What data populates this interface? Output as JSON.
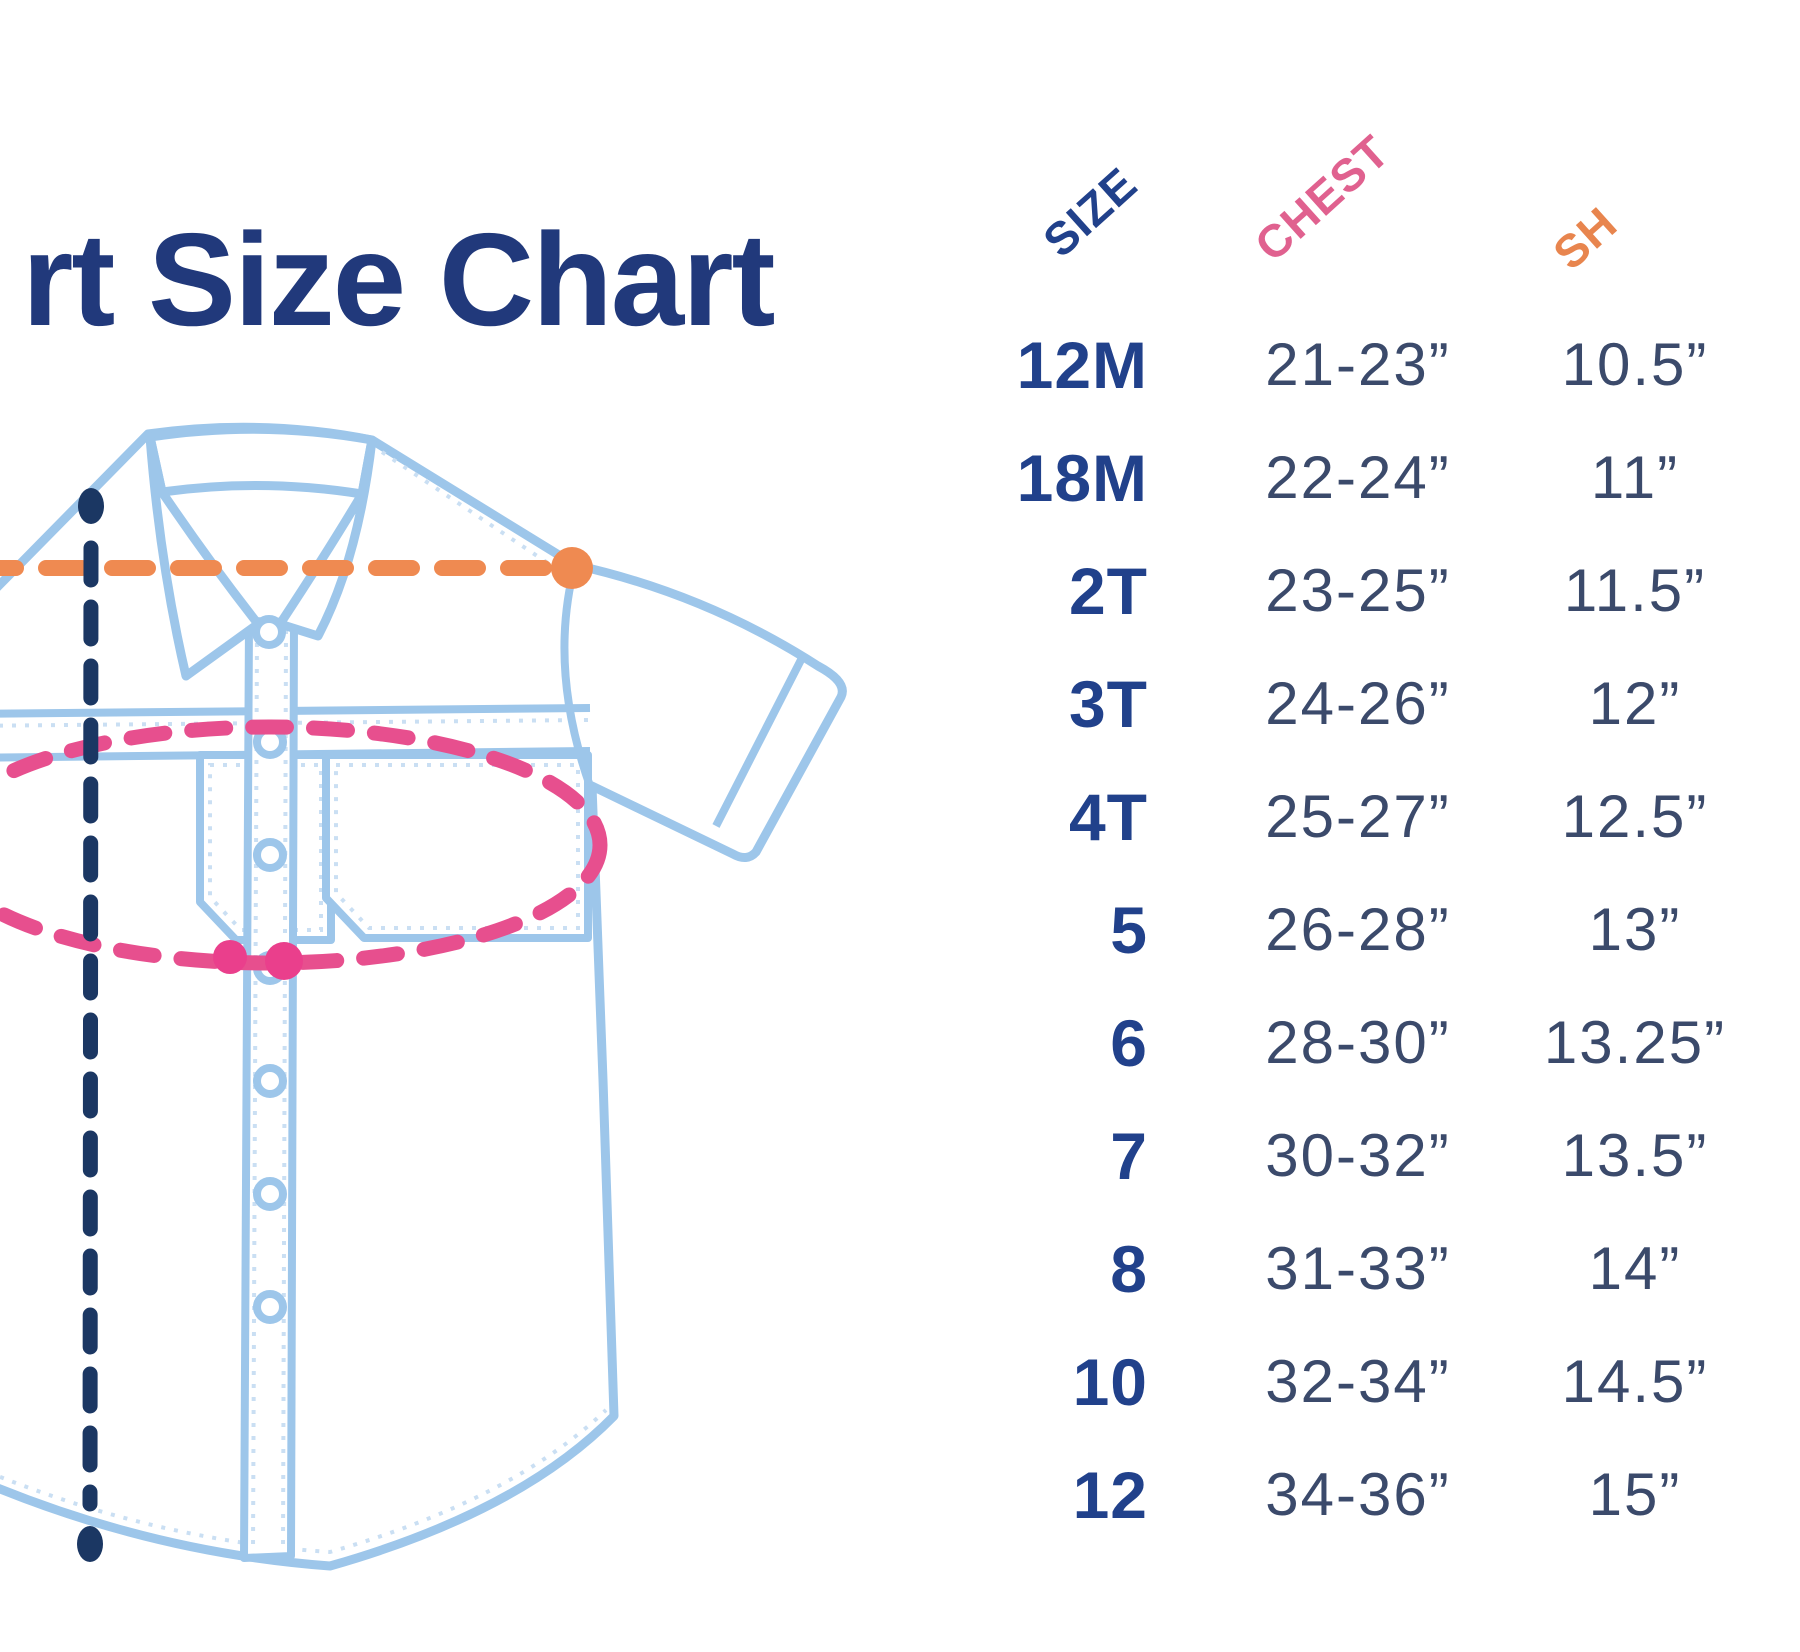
{
  "title": "rt Size Chart",
  "table": {
    "headers": [
      {
        "label": "SIZE",
        "color": "#21418b"
      },
      {
        "label": "CHEST",
        "color": "#e0618f"
      },
      {
        "label": "SH",
        "color": "#e8854e"
      }
    ],
    "rows": [
      {
        "size": "12M",
        "chest": "21-23”",
        "shoulder": "10.5”"
      },
      {
        "size": "18M",
        "chest": "22-24”",
        "shoulder": "11”"
      },
      {
        "size": "2T",
        "chest": "23-25”",
        "shoulder": "11.5”"
      },
      {
        "size": "3T",
        "chest": "24-26”",
        "shoulder": "12”"
      },
      {
        "size": "4T",
        "chest": "25-27”",
        "shoulder": "12.5”"
      },
      {
        "size": "5",
        "chest": "26-28”",
        "shoulder": "13”"
      },
      {
        "size": "6",
        "chest": "28-30”",
        "shoulder": "13.25”"
      },
      {
        "size": "7",
        "chest": "30-32”",
        "shoulder": "13.5”"
      },
      {
        "size": "8",
        "chest": "31-33”",
        "shoulder": "14”"
      },
      {
        "size": "10",
        "chest": "32-34”",
        "shoulder": "14.5”"
      },
      {
        "size": "12",
        "chest": "34-36”",
        "shoulder": "15”"
      }
    ]
  },
  "diagram": {
    "illustration": "short-sleeve-button-up-shirt-line-drawing",
    "markers": [
      {
        "name": "shoulder-measure-line",
        "color": "#ef8a51",
        "style": "horizontal-dashed-with-end-dot"
      },
      {
        "name": "chest-measure-ellipse",
        "color": "#e74f8e",
        "style": "dashed-ellipse-with-two-dots"
      },
      {
        "name": "length-measure-line",
        "color": "#1b3763",
        "style": "vertical-dashed-with-end-dots"
      }
    ],
    "shirt_outline_color": "#9dc6ea",
    "stitch_color": "#cadff3"
  },
  "colors": {
    "background": "#ffffff",
    "title_navy": "#21397b",
    "size_navy": "#21418b",
    "value_slate": "#3b4a6b",
    "chest_pink": "#e0618f",
    "shoulder_orange": "#e8854e"
  }
}
